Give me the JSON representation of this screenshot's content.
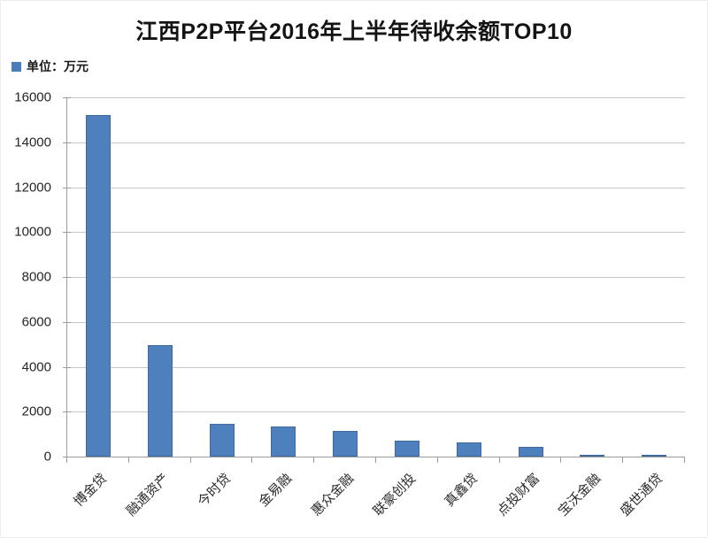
{
  "chart_data": {
    "type": "bar",
    "title": "江西P2P平台2016年上半年待收余额TOP10",
    "legend": {
      "label": "单位：万元",
      "swatch_color": "#4a7ebb"
    },
    "categories": [
      "博金贷",
      "融通资产",
      "今时贷",
      "金易融",
      "惠众金融",
      "联豪创投",
      "真鑫贷",
      "点投财富",
      "宝沃金融",
      "盛世通贷"
    ],
    "values": [
      15200,
      4950,
      1450,
      1330,
      1150,
      700,
      620,
      450,
      80,
      90
    ],
    "xlabel": "",
    "ylabel": "",
    "ylim": [
      0,
      16000
    ],
    "ytick_step": 2000,
    "yticks": [
      0,
      2000,
      4000,
      6000,
      8000,
      10000,
      12000,
      14000,
      16000
    ],
    "grid": true,
    "legend_position": "top-left",
    "bar_color": "#4d80bd",
    "bar_border_color": "#41699c",
    "gridline_color": "#c6c6c6",
    "axis_color": "#9b9b9b",
    "text_color": "#262626"
  }
}
